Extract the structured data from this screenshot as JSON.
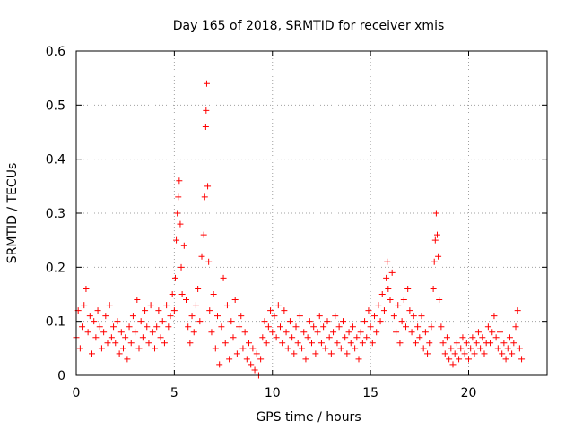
{
  "chart_data": {
    "type": "scatter",
    "title": "Day 165 of 2018, SRMTID for receiver xmis",
    "xlabel": "GPS time / hours",
    "ylabel": "SRMTID / TECUs",
    "xlim": [
      0,
      24
    ],
    "ylim": [
      0,
      0.6
    ],
    "xticks": [
      0,
      5,
      10,
      15,
      20
    ],
    "xtick_labels": [
      "0",
      "5",
      "10",
      "15",
      "20"
    ],
    "yticks": [
      0,
      0.1,
      0.2,
      0.3,
      0.4,
      0.5,
      0.6
    ],
    "ytick_labels": [
      "0",
      "0.1",
      "0.2",
      "0.3",
      "0.4",
      "0.5",
      "0.6"
    ],
    "grid": true,
    "marker": "+",
    "color": "#ff0000",
    "series": [
      {
        "name": "SRMTID",
        "points": [
          [
            0.0,
            0.07
          ],
          [
            0.1,
            0.12
          ],
          [
            0.2,
            0.05
          ],
          [
            0.3,
            0.09
          ],
          [
            0.4,
            0.13
          ],
          [
            0.5,
            0.16
          ],
          [
            0.6,
            0.08
          ],
          [
            0.7,
            0.11
          ],
          [
            0.8,
            0.04
          ],
          [
            0.9,
            0.1
          ],
          [
            1.0,
            0.07
          ],
          [
            1.1,
            0.12
          ],
          [
            1.2,
            0.09
          ],
          [
            1.3,
            0.05
          ],
          [
            1.4,
            0.08
          ],
          [
            1.5,
            0.11
          ],
          [
            1.6,
            0.06
          ],
          [
            1.7,
            0.13
          ],
          [
            1.8,
            0.07
          ],
          [
            1.9,
            0.09
          ],
          [
            2.0,
            0.06
          ],
          [
            2.1,
            0.1
          ],
          [
            2.2,
            0.04
          ],
          [
            2.3,
            0.08
          ],
          [
            2.4,
            0.05
          ],
          [
            2.5,
            0.07
          ],
          [
            2.6,
            0.03
          ],
          [
            2.7,
            0.09
          ],
          [
            2.8,
            0.06
          ],
          [
            2.9,
            0.11
          ],
          [
            3.0,
            0.08
          ],
          [
            3.1,
            0.14
          ],
          [
            3.2,
            0.05
          ],
          [
            3.3,
            0.1
          ],
          [
            3.4,
            0.07
          ],
          [
            3.5,
            0.12
          ],
          [
            3.6,
            0.09
          ],
          [
            3.7,
            0.06
          ],
          [
            3.8,
            0.13
          ],
          [
            3.9,
            0.08
          ],
          [
            4.0,
            0.05
          ],
          [
            4.1,
            0.09
          ],
          [
            4.2,
            0.12
          ],
          [
            4.3,
            0.07
          ],
          [
            4.4,
            0.1
          ],
          [
            4.5,
            0.06
          ],
          [
            4.6,
            0.13
          ],
          [
            4.7,
            0.09
          ],
          [
            4.8,
            0.11
          ],
          [
            4.9,
            0.15
          ],
          [
            5.0,
            0.12
          ],
          [
            5.05,
            0.18
          ],
          [
            5.1,
            0.25
          ],
          [
            5.15,
            0.3
          ],
          [
            5.2,
            0.33
          ],
          [
            5.25,
            0.36
          ],
          [
            5.3,
            0.28
          ],
          [
            5.35,
            0.2
          ],
          [
            5.4,
            0.15
          ],
          [
            5.5,
            0.24
          ],
          [
            5.6,
            0.14
          ],
          [
            5.7,
            0.09
          ],
          [
            5.8,
            0.06
          ],
          [
            5.9,
            0.11
          ],
          [
            6.0,
            0.08
          ],
          [
            6.1,
            0.13
          ],
          [
            6.2,
            0.16
          ],
          [
            6.3,
            0.1
          ],
          [
            6.4,
            0.22
          ],
          [
            6.5,
            0.26
          ],
          [
            6.55,
            0.33
          ],
          [
            6.6,
            0.46
          ],
          [
            6.62,
            0.49
          ],
          [
            6.65,
            0.54
          ],
          [
            6.7,
            0.35
          ],
          [
            6.75,
            0.21
          ],
          [
            6.8,
            0.12
          ],
          [
            6.9,
            0.08
          ],
          [
            7.0,
            0.15
          ],
          [
            7.1,
            0.05
          ],
          [
            7.2,
            0.11
          ],
          [
            7.3,
            0.02
          ],
          [
            7.4,
            0.09
          ],
          [
            7.5,
            0.18
          ],
          [
            7.6,
            0.06
          ],
          [
            7.7,
            0.13
          ],
          [
            7.8,
            0.03
          ],
          [
            7.9,
            0.1
          ],
          [
            8.0,
            0.07
          ],
          [
            8.1,
            0.14
          ],
          [
            8.2,
            0.04
          ],
          [
            8.3,
            0.09
          ],
          [
            8.4,
            0.11
          ],
          [
            8.5,
            0.05
          ],
          [
            8.6,
            0.08
          ],
          [
            8.7,
            0.03
          ],
          [
            8.8,
            0.06
          ],
          [
            8.9,
            0.02
          ],
          [
            9.0,
            0.05
          ],
          [
            9.1,
            0.01
          ],
          [
            9.2,
            0.04
          ],
          [
            9.3,
            0.0
          ],
          [
            9.4,
            0.03
          ],
          [
            9.5,
            0.07
          ],
          [
            9.6,
            0.1
          ],
          [
            9.7,
            0.06
          ],
          [
            9.8,
            0.09
          ],
          [
            9.9,
            0.12
          ],
          [
            10.0,
            0.08
          ],
          [
            10.1,
            0.11
          ],
          [
            10.2,
            0.07
          ],
          [
            10.3,
            0.13
          ],
          [
            10.4,
            0.09
          ],
          [
            10.5,
            0.06
          ],
          [
            10.6,
            0.12
          ],
          [
            10.7,
            0.08
          ],
          [
            10.8,
            0.05
          ],
          [
            10.9,
            0.1
          ],
          [
            11.0,
            0.07
          ],
          [
            11.1,
            0.04
          ],
          [
            11.2,
            0.09
          ],
          [
            11.3,
            0.06
          ],
          [
            11.4,
            0.11
          ],
          [
            11.5,
            0.05
          ],
          [
            11.6,
            0.08
          ],
          [
            11.7,
            0.03
          ],
          [
            11.8,
            0.07
          ],
          [
            11.9,
            0.1
          ],
          [
            12.0,
            0.06
          ],
          [
            12.1,
            0.09
          ],
          [
            12.2,
            0.04
          ],
          [
            12.3,
            0.08
          ],
          [
            12.4,
            0.11
          ],
          [
            12.5,
            0.06
          ],
          [
            12.6,
            0.09
          ],
          [
            12.7,
            0.05
          ],
          [
            12.8,
            0.1
          ],
          [
            12.9,
            0.07
          ],
          [
            13.0,
            0.04
          ],
          [
            13.1,
            0.08
          ],
          [
            13.2,
            0.11
          ],
          [
            13.3,
            0.06
          ],
          [
            13.4,
            0.09
          ],
          [
            13.5,
            0.05
          ],
          [
            13.6,
            0.1
          ],
          [
            13.7,
            0.07
          ],
          [
            13.8,
            0.04
          ],
          [
            13.9,
            0.08
          ],
          [
            14.0,
            0.06
          ],
          [
            14.1,
            0.09
          ],
          [
            14.2,
            0.05
          ],
          [
            14.3,
            0.07
          ],
          [
            14.4,
            0.03
          ],
          [
            14.5,
            0.08
          ],
          [
            14.6,
            0.06
          ],
          [
            14.7,
            0.1
          ],
          [
            14.8,
            0.07
          ],
          [
            14.9,
            0.12
          ],
          [
            15.0,
            0.09
          ],
          [
            15.1,
            0.06
          ],
          [
            15.2,
            0.11
          ],
          [
            15.3,
            0.08
          ],
          [
            15.4,
            0.13
          ],
          [
            15.5,
            0.1
          ],
          [
            15.6,
            0.15
          ],
          [
            15.7,
            0.12
          ],
          [
            15.8,
            0.18
          ],
          [
            15.85,
            0.21
          ],
          [
            15.9,
            0.16
          ],
          [
            16.0,
            0.14
          ],
          [
            16.1,
            0.19
          ],
          [
            16.2,
            0.11
          ],
          [
            16.3,
            0.08
          ],
          [
            16.4,
            0.13
          ],
          [
            16.5,
            0.06
          ],
          [
            16.6,
            0.1
          ],
          [
            16.7,
            0.14
          ],
          [
            16.8,
            0.09
          ],
          [
            16.9,
            0.16
          ],
          [
            17.0,
            0.12
          ],
          [
            17.1,
            0.08
          ],
          [
            17.2,
            0.11
          ],
          [
            17.3,
            0.06
          ],
          [
            17.4,
            0.09
          ],
          [
            17.5,
            0.07
          ],
          [
            17.6,
            0.11
          ],
          [
            17.7,
            0.05
          ],
          [
            17.8,
            0.08
          ],
          [
            17.9,
            0.04
          ],
          [
            18.0,
            0.06
          ],
          [
            18.1,
            0.09
          ],
          [
            18.2,
            0.16
          ],
          [
            18.25,
            0.21
          ],
          [
            18.3,
            0.25
          ],
          [
            18.35,
            0.3
          ],
          [
            18.4,
            0.26
          ],
          [
            18.45,
            0.22
          ],
          [
            18.5,
            0.14
          ],
          [
            18.6,
            0.09
          ],
          [
            18.7,
            0.06
          ],
          [
            18.8,
            0.04
          ],
          [
            18.9,
            0.07
          ],
          [
            19.0,
            0.03
          ],
          [
            19.1,
            0.05
          ],
          [
            19.2,
            0.02
          ],
          [
            19.3,
            0.04
          ],
          [
            19.4,
            0.06
          ],
          [
            19.5,
            0.03
          ],
          [
            19.6,
            0.05
          ],
          [
            19.7,
            0.07
          ],
          [
            19.8,
            0.04
          ],
          [
            19.9,
            0.06
          ],
          [
            20.0,
            0.03
          ],
          [
            20.1,
            0.05
          ],
          [
            20.2,
            0.07
          ],
          [
            20.3,
            0.04
          ],
          [
            20.4,
            0.06
          ],
          [
            20.5,
            0.08
          ],
          [
            20.6,
            0.05
          ],
          [
            20.7,
            0.07
          ],
          [
            20.8,
            0.04
          ],
          [
            20.9,
            0.06
          ],
          [
            21.0,
            0.09
          ],
          [
            21.1,
            0.06
          ],
          [
            21.2,
            0.08
          ],
          [
            21.3,
            0.11
          ],
          [
            21.4,
            0.07
          ],
          [
            21.5,
            0.05
          ],
          [
            21.6,
            0.08
          ],
          [
            21.7,
            0.04
          ],
          [
            21.8,
            0.06
          ],
          [
            21.9,
            0.03
          ],
          [
            22.0,
            0.05
          ],
          [
            22.1,
            0.07
          ],
          [
            22.2,
            0.04
          ],
          [
            22.3,
            0.06
          ],
          [
            22.4,
            0.09
          ],
          [
            22.5,
            0.12
          ],
          [
            22.6,
            0.05
          ],
          [
            22.7,
            0.03
          ]
        ]
      }
    ]
  }
}
